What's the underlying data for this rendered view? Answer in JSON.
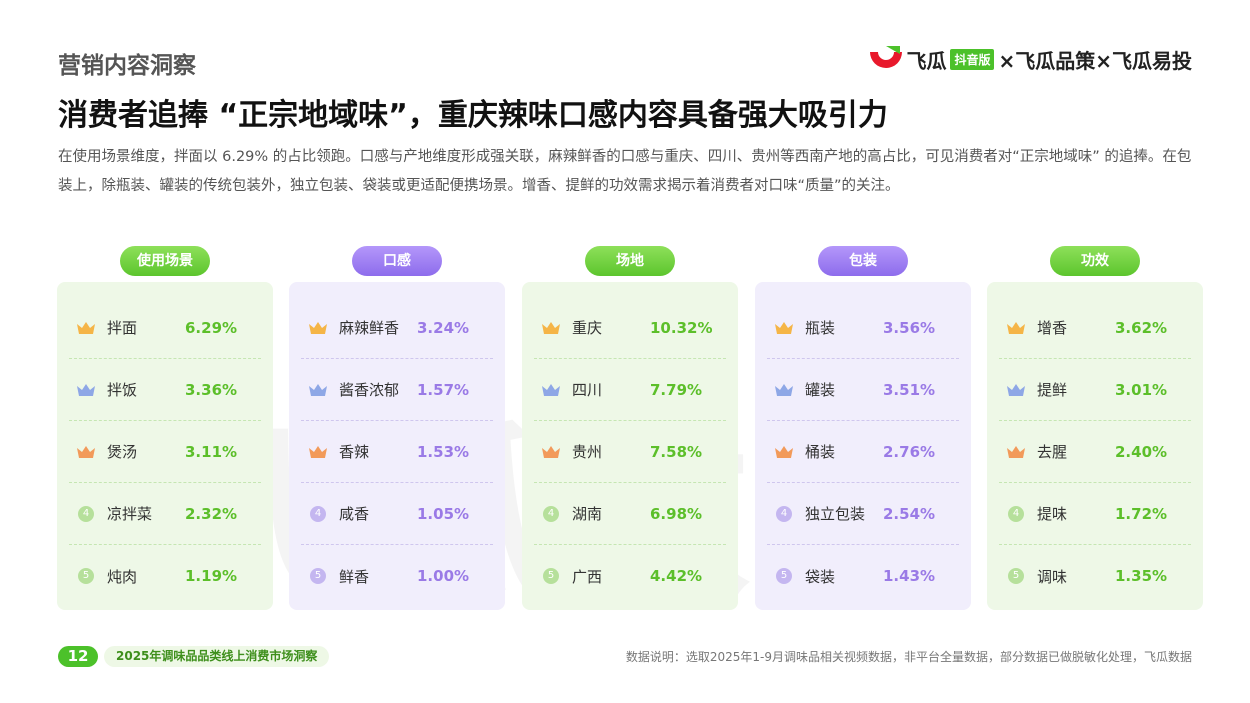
{
  "header": {
    "section": "营销内容洞察",
    "logo": {
      "brand": "飞瓜",
      "badge": "抖音版",
      "partners": "×飞瓜品策×飞瓜易投"
    }
  },
  "title": "消费者追捧 “正宗地域味”，重庆辣味口感内容具备强大吸引力",
  "body": "在使用场景维度，拌面以 6.29% 的占比领跑。口感与产地维度形成强关联，麻辣鲜香的口感与重庆、四川、贵州等西南产地的高占比，可见消费者对“正宗地域味” 的追捧。在包装上，除瓶装、罐装的传统包装外，独立包装、袋装或更适配便携场景。增香、提鲜的功效需求揭示着消费者对口味“质量”的关注。",
  "watermark": "飞瓜数据",
  "panels": [
    {
      "title": "使用场景",
      "theme": "green",
      "rows": [
        {
          "rank": "1",
          "name": "拌面",
          "value": "6.29%"
        },
        {
          "rank": "2",
          "name": "拌饭",
          "value": "3.36%"
        },
        {
          "rank": "3",
          "name": "煲汤",
          "value": "3.11%"
        },
        {
          "rank": "4",
          "name": "凉拌菜",
          "value": "2.32%"
        },
        {
          "rank": "5",
          "name": "炖肉",
          "value": "1.19%"
        }
      ]
    },
    {
      "title": "口感",
      "theme": "purple",
      "rows": [
        {
          "rank": "1",
          "name": "麻辣鲜香",
          "value": "3.24%"
        },
        {
          "rank": "2",
          "name": "酱香浓郁",
          "value": "1.57%"
        },
        {
          "rank": "3",
          "name": "香辣",
          "value": "1.53%"
        },
        {
          "rank": "4",
          "name": "咸香",
          "value": "1.05%"
        },
        {
          "rank": "5",
          "name": "鲜香",
          "value": "1.00%"
        }
      ]
    },
    {
      "title": "场地",
      "theme": "green",
      "rows": [
        {
          "rank": "1",
          "name": "重庆",
          "value": "10.32%"
        },
        {
          "rank": "2",
          "name": "四川",
          "value": "7.79%"
        },
        {
          "rank": "3",
          "name": "贵州",
          "value": "7.58%"
        },
        {
          "rank": "4",
          "name": "湖南",
          "value": "6.98%"
        },
        {
          "rank": "5",
          "name": "广西",
          "value": "4.42%"
        }
      ]
    },
    {
      "title": "包装",
      "theme": "purple",
      "rows": [
        {
          "rank": "1",
          "name": "瓶装",
          "value": "3.56%"
        },
        {
          "rank": "2",
          "name": "罐装",
          "value": "3.51%"
        },
        {
          "rank": "3",
          "name": "桶装",
          "value": "2.76%"
        },
        {
          "rank": "4",
          "name": "独立包装",
          "value": "2.54%"
        },
        {
          "rank": "5",
          "name": "袋装",
          "value": "1.43%"
        }
      ]
    },
    {
      "title": "功效",
      "theme": "green",
      "rows": [
        {
          "rank": "1",
          "name": "增香",
          "value": "3.62%"
        },
        {
          "rank": "2",
          "name": "提鲜",
          "value": "3.01%"
        },
        {
          "rank": "3",
          "name": "去腥",
          "value": "2.40%"
        },
        {
          "rank": "4",
          "name": "提味",
          "value": "1.72%"
        },
        {
          "rank": "5",
          "name": "调味",
          "value": "1.35%"
        }
      ]
    }
  ],
  "footer": {
    "page": "12",
    "report": "2025年调味品品类线上消费市场洞察",
    "note": "数据说明：选取2025年1-9月调味品相关视频数据，非平台全量数据，部分数据已做脱敏化处理，飞瓜数据"
  }
}
